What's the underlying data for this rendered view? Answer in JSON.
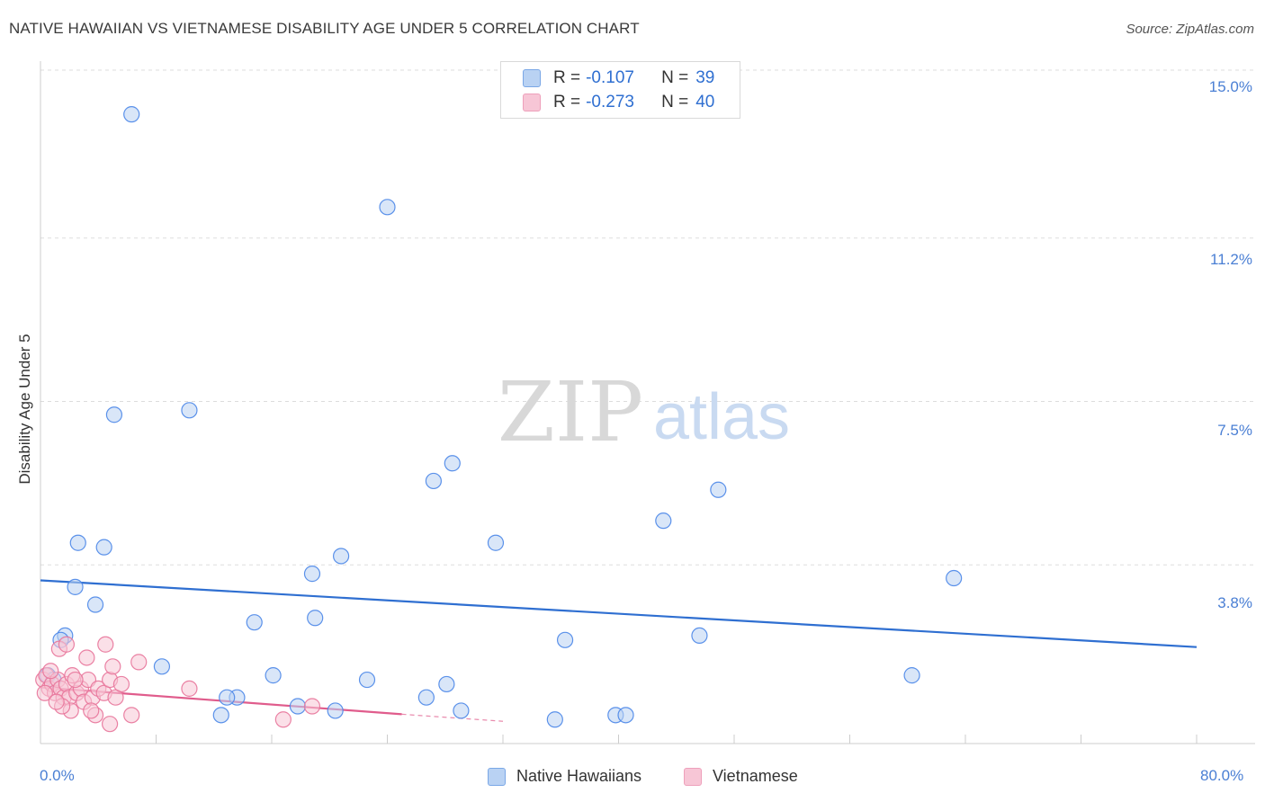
{
  "title": "NATIVE HAWAIIAN VS VIETNAMESE DISABILITY AGE UNDER 5 CORRELATION CHART",
  "source": "Source: ZipAtlas.com",
  "watermark": {
    "zip": "ZIP",
    "atlas": "atlas"
  },
  "legend": {
    "rows": [
      {
        "r_label": "R =",
        "r_value": "-0.107",
        "n_label": "N =",
        "n_value": "39"
      },
      {
        "r_label": "R =",
        "r_value": "-0.273",
        "n_label": "N =",
        "n_value": "40"
      }
    ]
  },
  "bottom_legend": {
    "series1": "Native Hawaiians",
    "series2": "Vietnamese"
  },
  "colors": {
    "blue": "#4a86e8",
    "blue_fill": "#b9d2f3",
    "blue_line": "#2f6fd1",
    "pink": "#e8749a",
    "pink_fill": "#f7c6d6",
    "pink_line": "#e05c8c",
    "tick_text": "#4a7fd4"
  },
  "chart_data": {
    "type": "scatter",
    "title": "NATIVE HAWAIIAN VS VIETNAMESE DISABILITY AGE UNDER 5 CORRELATION CHART",
    "xlabel": "",
    "ylabel": "Disability Age Under 5",
    "xlim": [
      0,
      80
    ],
    "ylim": [
      0,
      15
    ],
    "x_tick_labels": [
      "0.0%",
      "80.0%"
    ],
    "y_ticks": [
      3.8,
      7.5,
      11.2,
      15.0
    ],
    "y_tick_labels": [
      "3.8%",
      "7.5%",
      "11.2%",
      "15.0%"
    ],
    "series": [
      {
        "name": "Native Hawaiians",
        "r": -0.107,
        "n": 39,
        "trend": {
          "x": [
            0,
            80
          ],
          "y": [
            3.45,
            1.94
          ]
        },
        "points": [
          [
            6.3,
            14.0
          ],
          [
            24.0,
            11.9
          ],
          [
            5.1,
            7.2
          ],
          [
            10.3,
            7.3
          ],
          [
            28.5,
            6.1
          ],
          [
            27.2,
            5.7
          ],
          [
            46.9,
            5.5
          ],
          [
            43.1,
            4.8
          ],
          [
            2.6,
            4.3
          ],
          [
            4.4,
            4.2
          ],
          [
            31.5,
            4.3
          ],
          [
            20.8,
            4.0
          ],
          [
            18.8,
            3.6
          ],
          [
            63.2,
            3.5
          ],
          [
            2.4,
            3.3
          ],
          [
            3.8,
            2.9
          ],
          [
            19.0,
            2.6
          ],
          [
            14.8,
            2.5
          ],
          [
            1.7,
            2.2
          ],
          [
            1.4,
            2.1
          ],
          [
            45.6,
            2.2
          ],
          [
            36.3,
            2.1
          ],
          [
            8.4,
            1.5
          ],
          [
            0.5,
            1.3
          ],
          [
            0.9,
            1.2
          ],
          [
            16.1,
            1.3
          ],
          [
            22.6,
            1.2
          ],
          [
            28.1,
            1.1
          ],
          [
            60.3,
            1.3
          ],
          [
            13.6,
            0.8
          ],
          [
            26.7,
            0.8
          ],
          [
            12.9,
            0.8
          ],
          [
            17.8,
            0.6
          ],
          [
            29.1,
            0.5
          ],
          [
            20.4,
            0.5
          ],
          [
            12.5,
            0.4
          ],
          [
            35.6,
            0.3
          ],
          [
            39.8,
            0.4
          ],
          [
            40.5,
            0.4
          ]
        ]
      },
      {
        "name": "Vietnamese",
        "r": -0.273,
        "n": 40,
        "trend": {
          "x": [
            0,
            25
          ],
          "y": [
            1.03,
            0.42
          ]
        },
        "trend_dashed": {
          "x": [
            25,
            32
          ],
          "y": [
            0.42,
            0.26
          ]
        },
        "points": [
          [
            0.2,
            1.2
          ],
          [
            0.4,
            1.3
          ],
          [
            0.6,
            1.0
          ],
          [
            0.8,
            1.1
          ],
          [
            1.0,
            0.9
          ],
          [
            1.2,
            1.2
          ],
          [
            1.4,
            1.0
          ],
          [
            1.6,
            0.8
          ],
          [
            1.8,
            1.1
          ],
          [
            2.0,
            0.8
          ],
          [
            2.2,
            1.3
          ],
          [
            2.5,
            0.9
          ],
          [
            2.8,
            1.0
          ],
          [
            3.0,
            0.7
          ],
          [
            3.3,
            1.2
          ],
          [
            3.6,
            0.8
          ],
          [
            4.0,
            1.0
          ],
          [
            4.4,
            0.9
          ],
          [
            4.8,
            1.2
          ],
          [
            5.2,
            0.8
          ],
          [
            1.3,
            1.9
          ],
          [
            1.8,
            2.0
          ],
          [
            3.2,
            1.7
          ],
          [
            4.5,
            2.0
          ],
          [
            5.0,
            1.5
          ],
          [
            6.8,
            1.6
          ],
          [
            10.3,
            1.0
          ],
          [
            2.1,
            0.5
          ],
          [
            1.5,
            0.6
          ],
          [
            3.8,
            0.4
          ],
          [
            6.3,
            0.4
          ],
          [
            16.8,
            0.3
          ],
          [
            4.8,
            0.2
          ],
          [
            18.8,
            0.6
          ],
          [
            0.3,
            0.9
          ],
          [
            0.7,
            1.4
          ],
          [
            2.4,
            1.2
          ],
          [
            3.5,
            0.5
          ],
          [
            5.6,
            1.1
          ],
          [
            1.1,
            0.7
          ]
        ]
      }
    ]
  }
}
